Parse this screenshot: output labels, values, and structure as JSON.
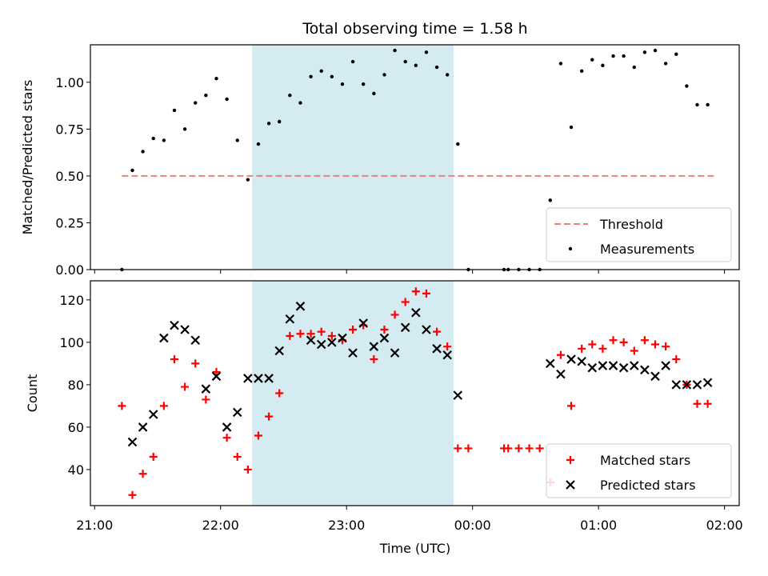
{
  "chart_data": {
    "title": "Total observing time = 1.58 h",
    "shaded_region": {
      "start": "22:15",
      "end": "23:51",
      "color": "#add8e6"
    },
    "x_axis": {
      "label": "Time (UTC)",
      "range": [
        "20:58",
        "02:07"
      ],
      "ticks": [
        "21:00",
        "22:00",
        "23:00",
        "00:00",
        "01:00",
        "02:00"
      ]
    },
    "panels": [
      {
        "type": "scatter",
        "ylabel": "Matched/Predicted stars",
        "ylim": [
          0,
          1.2
        ],
        "yticks": [
          "0.00",
          "0.25",
          "0.50",
          "0.75",
          "1.00"
        ],
        "legend_position": "lower right",
        "threshold": {
          "name": "Threshold",
          "value": 0.5,
          "x_start": "21:13",
          "x_end": "01:56",
          "color": "#f08080"
        },
        "series": [
          {
            "name": "Measurements",
            "color": "#000000",
            "marker": "dot",
            "points": [
              [
                "21:13",
                0.0
              ],
              [
                "21:18",
                0.53
              ],
              [
                "21:23",
                0.63
              ],
              [
                "21:28",
                0.7
              ],
              [
                "21:33",
                0.69
              ],
              [
                "21:38",
                0.85
              ],
              [
                "21:43",
                0.75
              ],
              [
                "21:48",
                0.89
              ],
              [
                "21:53",
                0.93
              ],
              [
                "21:58",
                1.02
              ],
              [
                "22:03",
                0.91
              ],
              [
                "22:08",
                0.69
              ],
              [
                "22:13",
                0.48
              ],
              [
                "22:18",
                0.67
              ],
              [
                "22:23",
                0.78
              ],
              [
                "22:28",
                0.79
              ],
              [
                "22:33",
                0.93
              ],
              [
                "22:38",
                0.89
              ],
              [
                "22:43",
                1.03
              ],
              [
                "22:48",
                1.06
              ],
              [
                "22:53",
                1.03
              ],
              [
                "22:58",
                0.99
              ],
              [
                "23:03",
                1.11
              ],
              [
                "23:08",
                0.99
              ],
              [
                "23:13",
                0.94
              ],
              [
                "23:18",
                1.04
              ],
              [
                "23:23",
                1.17
              ],
              [
                "23:28",
                1.11
              ],
              [
                "23:33",
                1.09
              ],
              [
                "23:38",
                1.16
              ],
              [
                "23:43",
                1.08
              ],
              [
                "23:48",
                1.04
              ],
              [
                "23:53",
                0.67
              ],
              [
                "23:58",
                0.0
              ],
              [
                "00:15",
                0.0
              ],
              [
                "00:17",
                0.0
              ],
              [
                "00:22",
                0.0
              ],
              [
                "00:27",
                0.0
              ],
              [
                "00:32",
                0.0
              ],
              [
                "00:37",
                0.37
              ],
              [
                "00:42",
                1.1
              ],
              [
                "00:47",
                0.76
              ],
              [
                "00:52",
                1.06
              ],
              [
                "00:57",
                1.12
              ],
              [
                "01:02",
                1.09
              ],
              [
                "01:07",
                1.14
              ],
              [
                "01:12",
                1.14
              ],
              [
                "01:17",
                1.08
              ],
              [
                "01:22",
                1.16
              ],
              [
                "01:27",
                1.17
              ],
              [
                "01:32",
                1.1
              ],
              [
                "01:37",
                1.15
              ],
              [
                "01:42",
                0.98
              ],
              [
                "01:47",
                0.88
              ],
              [
                "01:52",
                0.88
              ]
            ]
          }
        ]
      },
      {
        "type": "scatter",
        "ylabel": "Count",
        "ylim": [
          23,
          129
        ],
        "yticks": [
          "40",
          "60",
          "80",
          "100",
          "120"
        ],
        "legend_position": "lower right",
        "series": [
          {
            "name": "Matched stars",
            "color": "#ff0000",
            "marker": "plus",
            "points": [
              [
                "21:13",
                70
              ],
              [
                "21:18",
                28
              ],
              [
                "21:23",
                38
              ],
              [
                "21:28",
                46
              ],
              [
                "21:33",
                70
              ],
              [
                "21:38",
                92
              ],
              [
                "21:43",
                79
              ],
              [
                "21:48",
                90
              ],
              [
                "21:53",
                73
              ],
              [
                "21:58",
                86
              ],
              [
                "22:03",
                55
              ],
              [
                "22:08",
                46
              ],
              [
                "22:13",
                40
              ],
              [
                "22:18",
                56
              ],
              [
                "22:23",
                65
              ],
              [
                "22:28",
                76
              ],
              [
                "22:33",
                103
              ],
              [
                "22:38",
                104
              ],
              [
                "22:43",
                104
              ],
              [
                "22:48",
                105
              ],
              [
                "22:53",
                103
              ],
              [
                "22:58",
                101
              ],
              [
                "23:03",
                106
              ],
              [
                "23:08",
                108
              ],
              [
                "23:13",
                92
              ],
              [
                "23:18",
                106
              ],
              [
                "23:23",
                113
              ],
              [
                "23:28",
                119
              ],
              [
                "23:33",
                124
              ],
              [
                "23:38",
                123
              ],
              [
                "23:43",
                105
              ],
              [
                "23:48",
                98
              ],
              [
                "23:53",
                50
              ],
              [
                "23:58",
                50
              ],
              [
                "00:15",
                50
              ],
              [
                "00:17",
                50
              ],
              [
                "00:22",
                50
              ],
              [
                "00:27",
                50
              ],
              [
                "00:32",
                50
              ],
              [
                "00:37",
                34
              ],
              [
                "00:42",
                94
              ],
              [
                "00:47",
                70
              ],
              [
                "00:52",
                97
              ],
              [
                "00:57",
                99
              ],
              [
                "01:02",
                97
              ],
              [
                "01:07",
                101
              ],
              [
                "01:12",
                100
              ],
              [
                "01:17",
                96
              ],
              [
                "01:22",
                101
              ],
              [
                "01:27",
                99
              ],
              [
                "01:32",
                98
              ],
              [
                "01:37",
                92
              ],
              [
                "01:42",
                80
              ],
              [
                "01:47",
                71
              ],
              [
                "01:52",
                71
              ]
            ]
          },
          {
            "name": "Predicted stars",
            "color": "#000000",
            "marker": "x",
            "points": [
              [
                "21:18",
                53
              ],
              [
                "21:23",
                60
              ],
              [
                "21:28",
                66
              ],
              [
                "21:33",
                102
              ],
              [
                "21:38",
                108
              ],
              [
                "21:43",
                106
              ],
              [
                "21:48",
                101
              ],
              [
                "21:53",
                78
              ],
              [
                "21:58",
                84
              ],
              [
                "22:03",
                60
              ],
              [
                "22:08",
                67
              ],
              [
                "22:13",
                83
              ],
              [
                "22:18",
                83
              ],
              [
                "22:23",
                83
              ],
              [
                "22:28",
                96
              ],
              [
                "22:33",
                111
              ],
              [
                "22:38",
                117
              ],
              [
                "22:43",
                101
              ],
              [
                "22:48",
                99
              ],
              [
                "22:53",
                100
              ],
              [
                "22:58",
                102
              ],
              [
                "23:03",
                95
              ],
              [
                "23:08",
                109
              ],
              [
                "23:13",
                98
              ],
              [
                "23:18",
                102
              ],
              [
                "23:23",
                95
              ],
              [
                "23:28",
                107
              ],
              [
                "23:33",
                114
              ],
              [
                "23:38",
                106
              ],
              [
                "23:43",
                97
              ],
              [
                "23:48",
                94
              ],
              [
                "23:53",
                75
              ],
              [
                "00:37",
                90
              ],
              [
                "00:42",
                85
              ],
              [
                "00:47",
                92
              ],
              [
                "00:52",
                91
              ],
              [
                "00:57",
                88
              ],
              [
                "01:02",
                89
              ],
              [
                "01:07",
                89
              ],
              [
                "01:12",
                88
              ],
              [
                "01:17",
                89
              ],
              [
                "01:22",
                87
              ],
              [
                "01:27",
                84
              ],
              [
                "01:32",
                89
              ],
              [
                "01:37",
                80
              ],
              [
                "01:42",
                80
              ],
              [
                "01:47",
                80
              ],
              [
                "01:52",
                81
              ]
            ]
          }
        ]
      }
    ]
  }
}
